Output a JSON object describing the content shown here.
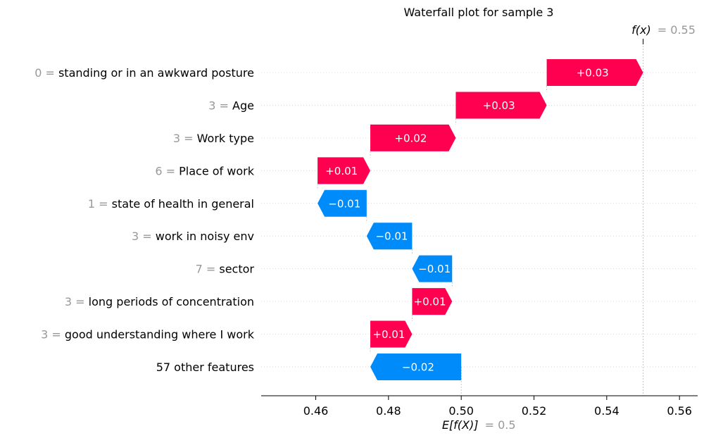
{
  "chart_data": {
    "type": "waterfall",
    "title": "Waterfall plot for sample 3",
    "fx_label": "f(x)",
    "fx_value": "= 0.55",
    "base_label": "E[f(X)]",
    "base_value": "= 0.5",
    "fx": 0.55,
    "base": 0.5,
    "xlim": [
      0.445,
      0.565
    ],
    "xticks": [
      0.46,
      0.48,
      0.5,
      0.52,
      0.54,
      0.56
    ],
    "xtick_labels": [
      "0.46",
      "0.48",
      "0.50",
      "0.52",
      "0.54",
      "0.56"
    ],
    "colors": {
      "positive": "#ff0051",
      "negative": "#008bfb",
      "value_gray": "#999999",
      "text": "#000000"
    },
    "rows": [
      {
        "value_text": "0",
        "feature": "standing or in an awkward posture",
        "start": 0.5235,
        "end": 0.55,
        "label": "+0.03"
      },
      {
        "value_text": "3",
        "feature": "Age",
        "start": 0.4985,
        "end": 0.5235,
        "label": "+0.03"
      },
      {
        "value_text": "3",
        "feature": "Work type",
        "start": 0.475,
        "end": 0.4985,
        "label": "+0.02"
      },
      {
        "value_text": "6",
        "feature": "Place of work",
        "start": 0.4605,
        "end": 0.475,
        "label": "+0.01"
      },
      {
        "value_text": "1",
        "feature": "state of health in general",
        "start": 0.474,
        "end": 0.4605,
        "label": "−0.01"
      },
      {
        "value_text": "3",
        "feature": "work in noisy env",
        "start": 0.4865,
        "end": 0.474,
        "label": "−0.01"
      },
      {
        "value_text": "7",
        "feature": "sector",
        "start": 0.4975,
        "end": 0.4865,
        "label": "−0.01"
      },
      {
        "value_text": "3",
        "feature": "long periods of concentration",
        "start": 0.4865,
        "end": 0.4975,
        "label": "+0.01"
      },
      {
        "value_text": "3",
        "feature": "good understanding where I work",
        "start": 0.475,
        "end": 0.4865,
        "label": "+0.01"
      },
      {
        "value_text": "",
        "feature": "57 other features",
        "start": 0.5,
        "end": 0.475,
        "label": "−0.02"
      }
    ]
  }
}
